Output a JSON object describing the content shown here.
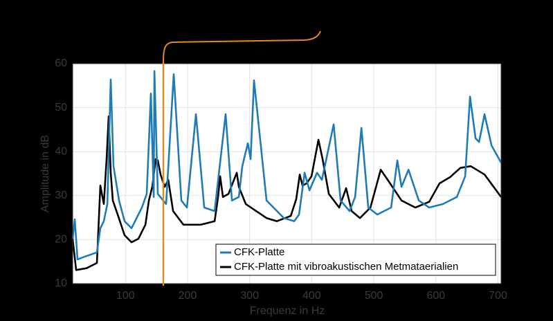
{
  "chart_data": {
    "type": "line",
    "xlabel": "Frequenz in Hz",
    "ylabel": "Amplitude in dB",
    "xlim": [
      15,
      705
    ],
    "ylim": [
      10,
      60
    ],
    "xticks": [
      100,
      200,
      300,
      400,
      500,
      600,
      700
    ],
    "yticks": [
      10,
      20,
      30,
      40,
      50,
      60
    ],
    "grid": true,
    "legend": "lower right",
    "marker_x": 161,
    "marker_color": "#e8891c",
    "series": [
      {
        "name": "CFK-Platte",
        "color": "#1f7bb6",
        "x": [
          15,
          18.3,
          22.8,
          31.7,
          54,
          59.6,
          65.2,
          70.8,
          76.3,
          80.8,
          89.7,
          98.6,
          109.8,
          126.5,
          134.3,
          141,
          145.5,
          146.6,
          152.1,
          165.5,
          177.8,
          190,
          199,
          213.5,
          226.9,
          243.6,
          261.4,
          271.5,
          282.6,
          288.2,
          297.1,
          301.6,
          307.1,
          327.2,
          355.1,
          371.8,
          379.6,
          388.5,
          396.3,
          408.6,
          416.4,
          435.4,
          446.5,
          461,
          469.9,
          480,
          491.1,
          505.6,
          527.9,
          537.9,
          544.6,
          555.8,
          572.5,
          589.2,
          611.5,
          633.8,
          647.2,
          655,
          663.9,
          669.5,
          678.4,
          689.6,
          705
        ],
        "values": [
          20.2,
          24.6,
          15.5,
          16,
          17.1,
          22.6,
          24.2,
          28.1,
          56.4,
          36.7,
          28.9,
          24.2,
          22.6,
          27.3,
          30.4,
          53.2,
          29.7,
          58.3,
          30.4,
          28.1,
          57.6,
          28.9,
          27.3,
          48.5,
          27.3,
          26.5,
          48.5,
          28.9,
          29.7,
          36.7,
          41.9,
          38.3,
          56.2,
          28.9,
          24.9,
          24.2,
          25.7,
          35.2,
          31.2,
          35.2,
          33.6,
          46.2,
          28.9,
          26.5,
          29.7,
          45.4,
          27.3,
          25.7,
          27.3,
          38,
          32,
          35.9,
          28.9,
          27.3,
          28.1,
          29.7,
          34.4,
          52.5,
          43,
          42.2,
          48.5,
          41.4,
          37.5
        ]
      },
      {
        "name": "CFK-Platte mit vibroakustischen Metmataerialien",
        "color": "#000000",
        "x": [
          15,
          20.6,
          37.3,
          54,
          59.6,
          65.2,
          69.6,
          73,
          76.3,
          79.7,
          87.5,
          98.6,
          109.8,
          120.9,
          132.1,
          137.7,
          143.2,
          148.8,
          152.1,
          156.6,
          163.3,
          168.9,
          176.7,
          193.4,
          221.3,
          243.6,
          249.2,
          252.5,
          257,
          265.9,
          279.3,
          282.6,
          293.8,
          310.5,
          327.2,
          343.9,
          366.2,
          375.1,
          380.7,
          385.2,
          391.9,
          399.7,
          410.8,
          417.5,
          427.6,
          444.3,
          455.4,
          464.3,
          477.7,
          494.5,
          511.2,
          522.3,
          544.6,
          566.9,
          589.2,
          605.9,
          622.7,
          639.4,
          656.1,
          678.4,
          705
        ],
        "values": [
          20.2,
          13.1,
          13.5,
          14.7,
          32.3,
          28.1,
          38.3,
          48,
          35.2,
          28.9,
          25.7,
          21,
          19.4,
          20.2,
          23.4,
          28.9,
          32,
          38.3,
          38,
          34.8,
          32,
          33.6,
          26.5,
          23.4,
          23.4,
          24.2,
          29.7,
          34.4,
          29.7,
          30.4,
          35.2,
          32,
          28.1,
          26.5,
          24.9,
          24.2,
          25.4,
          29.2,
          34.8,
          32.3,
          32.8,
          34.4,
          42.7,
          38.3,
          30.4,
          27.3,
          31.7,
          26.5,
          24.9,
          27.3,
          35.9,
          33.6,
          28.9,
          27.3,
          28.6,
          32.8,
          34.2,
          36.3,
          36.7,
          34.8,
          29.7
        ]
      }
    ]
  }
}
